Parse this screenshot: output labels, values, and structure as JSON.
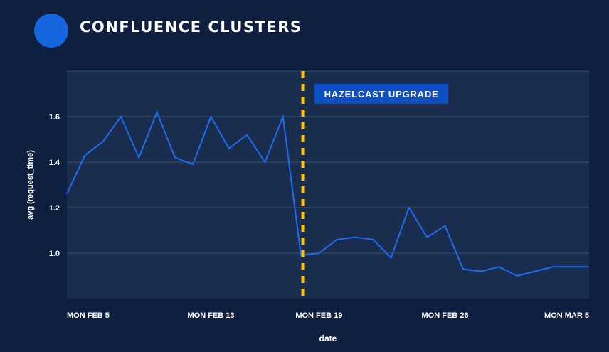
{
  "header": {
    "title": "CONFLUENCE CLUSTERS"
  },
  "colors": {
    "background": "#0e1f40",
    "plot_background": "#1b2d4e",
    "gridline": "#3b4e6e",
    "line": "#1f6bf0",
    "marker_line": "#f5c518",
    "annotation_box": "#0f4fc4",
    "accent_dot": "#1565e0",
    "text": "#ffffff"
  },
  "chart_data": {
    "type": "line",
    "title": "CONFLUENCE CLUSTERS",
    "xlabel": "date",
    "ylabel": "avg (request_time)",
    "ylim": [
      0.8,
      1.8
    ],
    "yticks": [
      "1.0",
      "1.2",
      "1.4",
      "1.6"
    ],
    "ytick_values": [
      1.0,
      1.2,
      1.4,
      1.6
    ],
    "xlim": [
      "2024-02-05",
      "2024-03-05"
    ],
    "xticks": [
      "MON FEB 5",
      "MON FEB 13",
      "MON FEB 19",
      "MON FEB 26",
      "MON MAR 5"
    ],
    "xtick_dates": [
      "2024-02-05",
      "2024-02-13",
      "2024-02-19",
      "2024-02-26",
      "2024-03-05"
    ],
    "grid": true,
    "series": [
      {
        "x": [
          "2024-02-05",
          "2024-02-06",
          "2024-02-07",
          "2024-02-08",
          "2024-02-09",
          "2024-02-10",
          "2024-02-11",
          "2024-02-12",
          "2024-02-13",
          "2024-02-14",
          "2024-02-15",
          "2024-02-16",
          "2024-02-17",
          "2024-02-18",
          "2024-02-19",
          "2024-02-20",
          "2024-02-21",
          "2024-02-22",
          "2024-02-23",
          "2024-02-24",
          "2024-02-25",
          "2024-02-26",
          "2024-02-27",
          "2024-02-28",
          "2024-02-29",
          "2024-03-01",
          "2024-03-02",
          "2024-03-03",
          "2024-03-04",
          "2024-03-05"
        ],
        "values": [
          1.26,
          1.43,
          1.49,
          1.6,
          1.42,
          1.62,
          1.42,
          1.39,
          1.6,
          1.46,
          1.52,
          1.4,
          1.6,
          0.99,
          1.0,
          1.06,
          1.07,
          1.06,
          0.98,
          1.2,
          1.07,
          1.12,
          0.93,
          0.92,
          0.94,
          0.9,
          0.92,
          0.94,
          0.94,
          0.94
        ]
      }
    ],
    "annotations": [
      {
        "type": "vertical-line",
        "x": "2024-02-18",
        "label": "HAZELCAST UPGRADE",
        "style": "dashed"
      }
    ]
  }
}
